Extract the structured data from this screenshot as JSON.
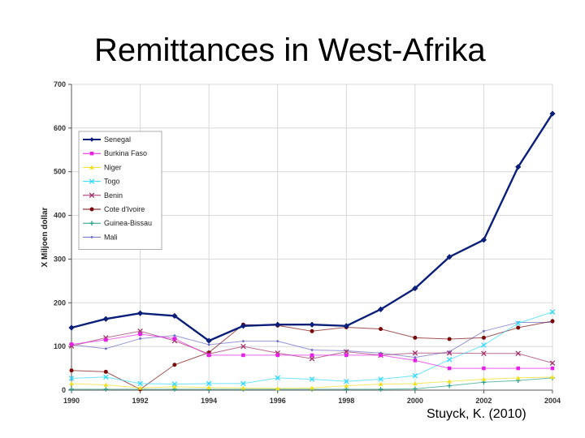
{
  "slide": {
    "title": "Remittances in West-Afrika",
    "citation": "Stuyck, K. (2010)"
  },
  "chart_data": {
    "type": "line",
    "title": "",
    "xlabel": "",
    "ylabel": "X Miljoen dollar",
    "x": [
      1990,
      1991,
      1992,
      1993,
      1994,
      1995,
      1996,
      1997,
      1998,
      1999,
      2000,
      2001,
      2002,
      2003,
      2004
    ],
    "xticks": [
      "1990",
      "1992",
      "1994",
      "1996",
      "1998",
      "2000",
      "2002",
      "2004"
    ],
    "yticks": [
      "0",
      "100",
      "200",
      "300",
      "400",
      "500",
      "600",
      "700"
    ],
    "xlim": [
      1990,
      2004
    ],
    "ylim": [
      0,
      700
    ],
    "grid": true,
    "legend": "top-left",
    "series": [
      {
        "name": "Senegal",
        "color": "#0a1f7a",
        "marker": "diamond",
        "bold": true,
        "values": [
          143,
          163,
          176,
          170,
          113,
          147,
          150,
          150,
          147,
          185,
          233,
          305,
          344,
          511,
          633
        ]
      },
      {
        "name": "Burkina Faso",
        "color": "#e61ee6",
        "marker": "square",
        "values": [
          105,
          115,
          128,
          118,
          80,
          80,
          80,
          80,
          80,
          80,
          68,
          50,
          50,
          50,
          50
        ]
      },
      {
        "name": "Niger",
        "color": "#f0e020",
        "marker": "triangle",
        "values": [
          15,
          12,
          5,
          8,
          6,
          5,
          4,
          5,
          10,
          14,
          15,
          20,
          25,
          28,
          30
        ]
      },
      {
        "name": "Togo",
        "color": "#30d8ff",
        "marker": "x",
        "values": [
          27,
          30,
          15,
          14,
          15,
          15,
          28,
          25,
          20,
          25,
          33,
          70,
          103,
          153,
          179
        ]
      },
      {
        "name": "Benin",
        "color": "#a0306a",
        "marker": "x",
        "values": [
          101,
          120,
          135,
          113,
          83,
          100,
          85,
          72,
          88,
          80,
          85,
          85,
          84,
          84,
          62
        ]
      },
      {
        "name": "Cote d'Ivoire",
        "color": "#7a0a0a",
        "marker": "circle",
        "values": [
          45,
          42,
          2,
          58,
          86,
          150,
          148,
          135,
          144,
          140,
          120,
          117,
          120,
          143,
          158
        ]
      },
      {
        "name": "Guinea-Bissau",
        "color": "#2aa08a",
        "marker": "plus",
        "values": [
          2,
          2,
          2,
          2,
          2,
          2,
          2,
          2,
          2,
          2,
          3,
          10,
          18,
          22,
          28
        ]
      },
      {
        "name": "Mali",
        "color": "#6b6bc8",
        "marker": "dot",
        "values": [
          104,
          95,
          118,
          125,
          104,
          112,
          112,
          92,
          90,
          85,
          75,
          88,
          135,
          155,
          155
        ]
      }
    ]
  }
}
